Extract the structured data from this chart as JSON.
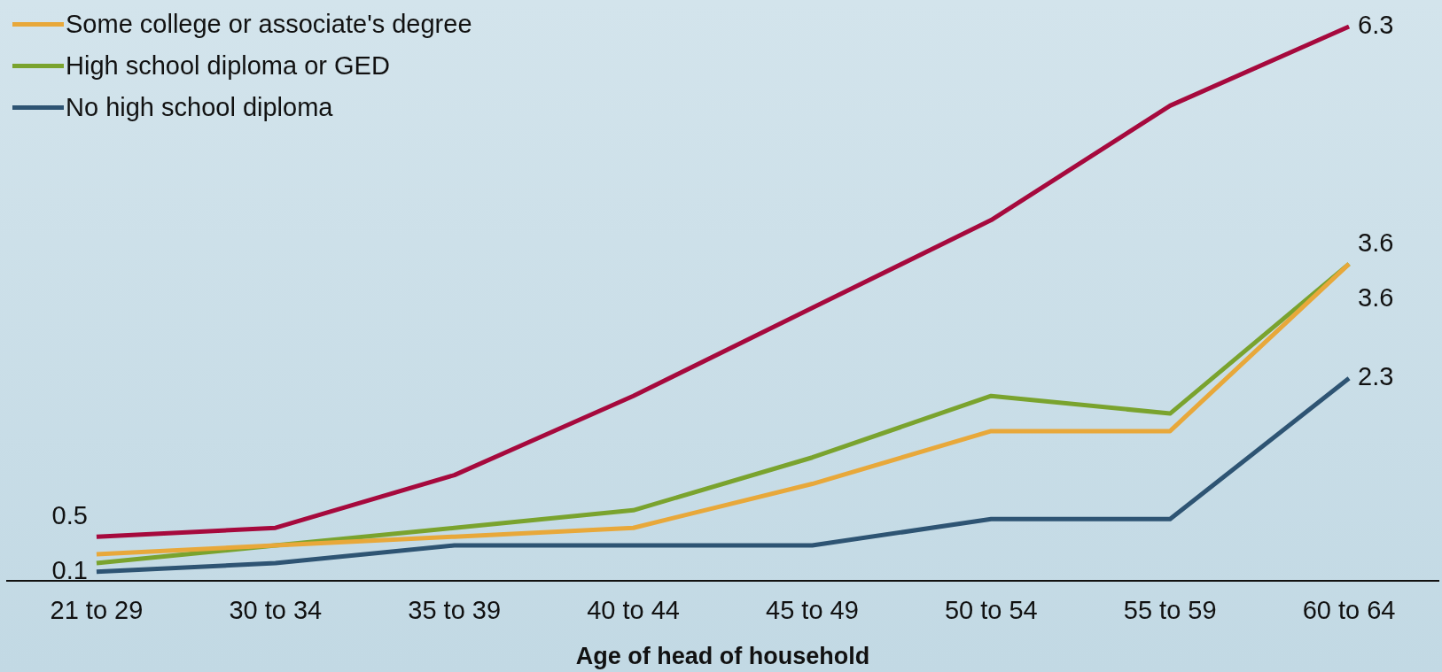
{
  "chart_data": {
    "type": "line",
    "xlabel": "Age of head of household",
    "categories": [
      "21 to 29",
      "30 to 34",
      "35 to 39",
      "40 to 44",
      "45 to 49",
      "50 to 54",
      "55 to 59",
      "60 to 64"
    ],
    "grid": false,
    "legend": "top left",
    "marker": "none",
    "line_style": "solid",
    "series": [
      {
        "color": "#a6093d",
        "values": [
          0.5,
          0.6,
          1.2,
          2.1,
          3.1,
          4.1,
          5.4,
          6.3
        ],
        "value_labels": [
          "0.5",
          null,
          null,
          null,
          null,
          null,
          null,
          "6.3"
        ]
      },
      {
        "name": "Some college or associate's degree",
        "color": "#e8a83a",
        "values": [
          0.3,
          0.4,
          0.5,
          0.6,
          1.1,
          1.7,
          1.7,
          3.6
        ],
        "value_labels": [
          null,
          null,
          null,
          null,
          null,
          null,
          null,
          "3.6"
        ]
      },
      {
        "name": "High school diploma or GED",
        "color": "#7aa32e",
        "values": [
          0.2,
          0.4,
          0.6,
          0.8,
          1.4,
          2.1,
          1.9,
          3.6
        ],
        "value_labels": [
          null,
          null,
          null,
          null,
          null,
          null,
          null,
          "3.6"
        ]
      },
      {
        "name": "No high school diploma",
        "color": "#2e5473",
        "values": [
          0.1,
          0.2,
          0.4,
          0.4,
          0.4,
          0.7,
          0.7,
          2.3
        ],
        "value_labels": [
          "0.1",
          null,
          null,
          null,
          null,
          null,
          null,
          "2.3"
        ]
      }
    ]
  }
}
